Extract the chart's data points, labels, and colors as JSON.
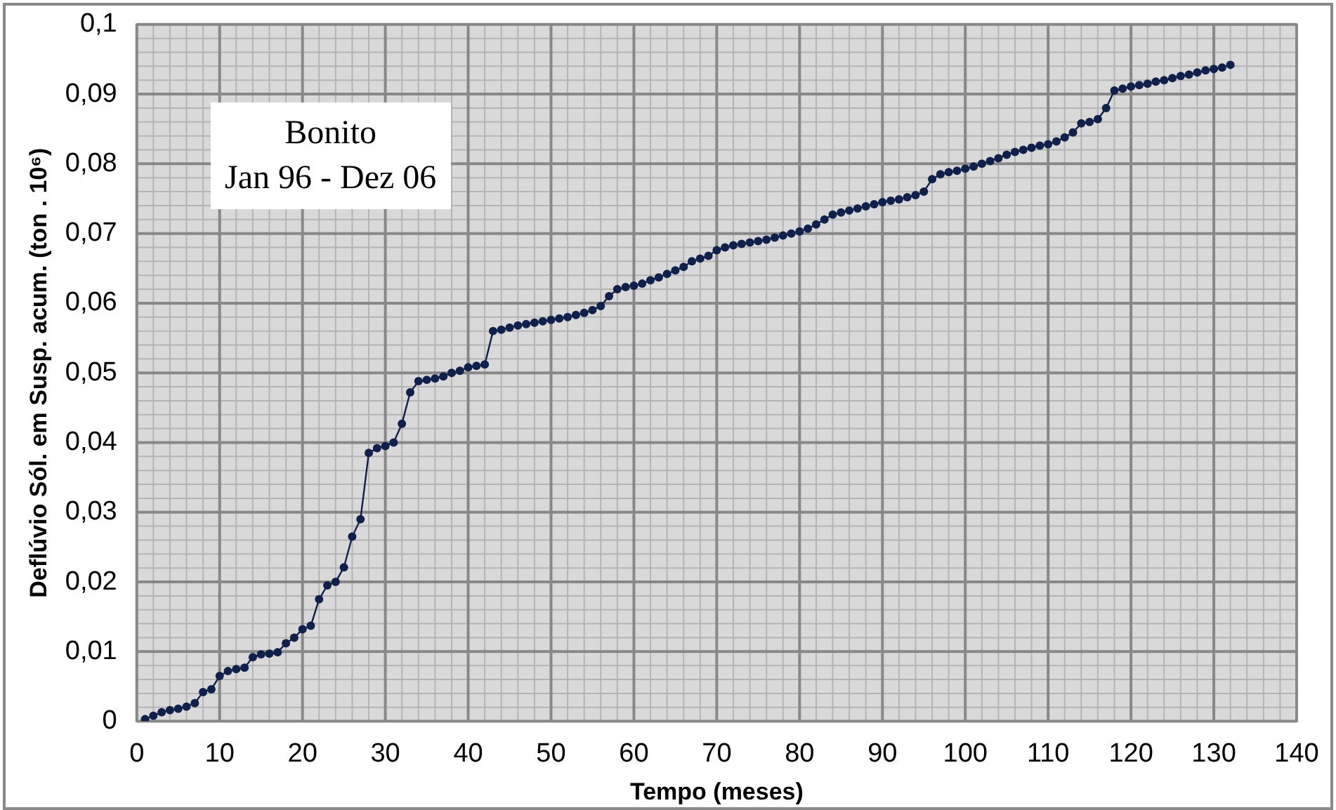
{
  "chart_data": {
    "type": "line",
    "title": "Bonito",
    "subtitle": "Jan 96 - Dez 06",
    "xlabel": "Tempo (meses)",
    "ylabel": "Deflúvio Sól. em Susp. acum. (ton . 10⁶)",
    "x": [
      1,
      2,
      3,
      4,
      5,
      6,
      7,
      8,
      9,
      10,
      11,
      12,
      13,
      14,
      15,
      16,
      17,
      18,
      19,
      20,
      21,
      22,
      23,
      24,
      25,
      26,
      27,
      28,
      29,
      30,
      31,
      32,
      33,
      34,
      35,
      36,
      37,
      38,
      39,
      40,
      41,
      42,
      43,
      44,
      45,
      46,
      47,
      48,
      49,
      50,
      51,
      52,
      53,
      54,
      55,
      56,
      57,
      58,
      59,
      60,
      61,
      62,
      63,
      64,
      65,
      66,
      67,
      68,
      69,
      70,
      71,
      72,
      73,
      74,
      75,
      76,
      77,
      78,
      79,
      80,
      81,
      82,
      83,
      84,
      85,
      86,
      87,
      88,
      89,
      90,
      91,
      92,
      93,
      94,
      95,
      96,
      97,
      98,
      99,
      100,
      101,
      102,
      103,
      104,
      105,
      106,
      107,
      108,
      109,
      110,
      111,
      112,
      113,
      114,
      115,
      116,
      117,
      118,
      119,
      120,
      121,
      122,
      123,
      124,
      125,
      126,
      127,
      128,
      129,
      130,
      131,
      132
    ],
    "series": [
      {
        "color": "#10204a",
        "values": [
          0.0003,
          0.0008,
          0.0013,
          0.0016,
          0.0018,
          0.0021,
          0.0026,
          0.0042,
          0.0046,
          0.0065,
          0.0072,
          0.0075,
          0.0077,
          0.0092,
          0.0096,
          0.0097,
          0.0099,
          0.0112,
          0.012,
          0.0132,
          0.0137,
          0.0175,
          0.0195,
          0.02,
          0.0221,
          0.0265,
          0.029,
          0.0385,
          0.0392,
          0.0395,
          0.04,
          0.0427,
          0.0472,
          0.0488,
          0.049,
          0.0492,
          0.0495,
          0.05,
          0.0503,
          0.0508,
          0.051,
          0.0512,
          0.056,
          0.0562,
          0.0565,
          0.0568,
          0.057,
          0.0572,
          0.0574,
          0.0576,
          0.0578,
          0.058,
          0.0583,
          0.0586,
          0.059,
          0.0596,
          0.061,
          0.062,
          0.0623,
          0.0625,
          0.0628,
          0.0633,
          0.0637,
          0.0642,
          0.0647,
          0.0652,
          0.066,
          0.0664,
          0.0668,
          0.0676,
          0.068,
          0.0683,
          0.0685,
          0.0687,
          0.0689,
          0.0691,
          0.0694,
          0.0697,
          0.07,
          0.0703,
          0.0707,
          0.0713,
          0.072,
          0.0727,
          0.073,
          0.0733,
          0.0736,
          0.0739,
          0.0742,
          0.0745,
          0.0747,
          0.0749,
          0.0752,
          0.0755,
          0.076,
          0.0778,
          0.0785,
          0.0788,
          0.079,
          0.0793,
          0.0796,
          0.08,
          0.0804,
          0.0808,
          0.0813,
          0.0817,
          0.082,
          0.0823,
          0.0826,
          0.0828,
          0.0832,
          0.0838,
          0.0845,
          0.0858,
          0.086,
          0.0864,
          0.088,
          0.0905,
          0.0908,
          0.0911,
          0.0913,
          0.0915,
          0.0918,
          0.092,
          0.0923,
          0.0926,
          0.0928,
          0.0931,
          0.0934,
          0.0936,
          0.0938,
          0.0942
        ]
      }
    ],
    "xlim": [
      0,
      140
    ],
    "xticks": [
      0,
      10,
      20,
      30,
      40,
      50,
      60,
      70,
      80,
      90,
      100,
      110,
      120,
      130,
      140
    ],
    "ylim": [
      0,
      0.1
    ],
    "yticks": [
      0,
      {
        "value": 0.01,
        "label": "0,01"
      },
      {
        "value": 0.02,
        "label": "0,02"
      },
      {
        "value": 0.03,
        "label": "0,03"
      },
      {
        "value": 0.04,
        "label": "0,04"
      },
      {
        "value": 0.05,
        "label": "0,05"
      },
      {
        "value": 0.06,
        "label": "0,06"
      },
      {
        "value": 0.07,
        "label": "0,07"
      },
      {
        "value": 0.08,
        "label": "0,08"
      },
      {
        "value": 0.09,
        "label": "0,09"
      },
      {
        "value": 0.1,
        "label": "0,1"
      }
    ],
    "grid": true,
    "legend": false,
    "marker": "circle",
    "line_style": "solid"
  }
}
